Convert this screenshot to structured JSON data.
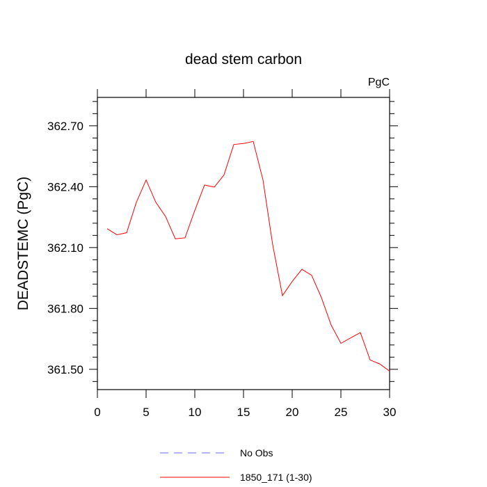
{
  "chart_data": {
    "type": "line",
    "title": "dead stem carbon",
    "units_label": "PgC",
    "ylabel": "DEADSTEMC  (PgC)",
    "xlabel": "",
    "xlim": [
      0,
      30
    ],
    "ylim": [
      361.4,
      362.84
    ],
    "x_ticks": [
      0,
      5,
      10,
      15,
      20,
      25,
      30
    ],
    "x_tick_labels": [
      "0",
      "5",
      "10",
      "15",
      "20",
      "25",
      "30"
    ],
    "y_ticks": [
      361.5,
      361.8,
      362.1,
      362.4,
      362.7
    ],
    "y_tick_labels": [
      "361.50",
      "361.80",
      "362.10",
      "362.40",
      "362.70"
    ],
    "grid": false,
    "legend_position": "bottom-center",
    "series": [
      {
        "name": "No Obs",
        "color": "#6666ff",
        "dash": "dashed",
        "x": [],
        "values": []
      },
      {
        "name": "1850_171 (1-30)",
        "color": "#ff0000",
        "dash": "solid",
        "x": [
          1,
          2,
          3,
          4,
          5,
          6,
          7,
          8,
          9,
          10,
          11,
          12,
          13,
          14,
          15,
          16,
          17,
          18,
          19,
          20,
          21,
          22,
          23,
          24,
          25,
          26,
          27,
          28,
          29,
          30
        ],
        "values": [
          362.193,
          362.163,
          362.173,
          362.323,
          362.433,
          362.323,
          362.253,
          362.143,
          362.148,
          362.283,
          362.408,
          362.398,
          362.458,
          362.608,
          362.613,
          362.623,
          362.433,
          362.113,
          361.863,
          361.933,
          361.993,
          361.963,
          361.853,
          361.718,
          361.628,
          361.655,
          361.681,
          361.546,
          361.526,
          361.491
        ]
      }
    ]
  }
}
